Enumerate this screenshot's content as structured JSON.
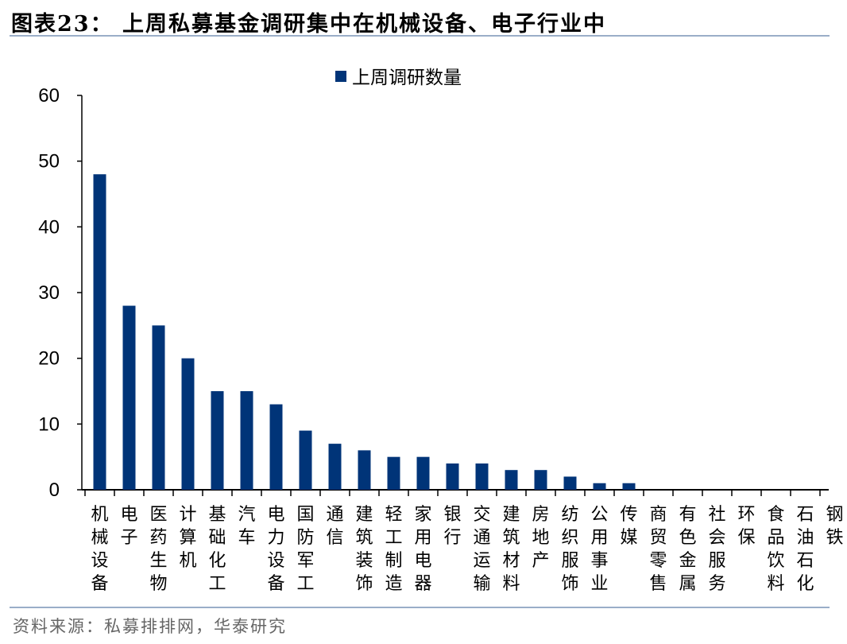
{
  "title": "图表23：  上周私募基金调研集中在机械设备、电子行业中",
  "source": "资料来源：私募排排网，华泰研究",
  "chart_data": {
    "type": "bar",
    "title": "",
    "xlabel": "",
    "ylabel": "",
    "ylim": [
      0,
      60
    ],
    "yticks": [
      0,
      10,
      20,
      30,
      40,
      50,
      60
    ],
    "grid": false,
    "legend_position": "top",
    "bar_color": "#003478",
    "categories": [
      "机械设备",
      "电子",
      "医药生物",
      "计算机",
      "基础化工",
      "汽车",
      "电力设备",
      "国防军工",
      "通信",
      "建筑装饰",
      "轻工制造",
      "家用电器",
      "银行",
      "交通运输",
      "建筑材料",
      "房地产",
      "纺织服饰",
      "公用事业",
      "传媒",
      "商贸零售",
      "有色金属",
      "社会服务",
      "环保",
      "食品饮料",
      "石油石化",
      "钢铁"
    ],
    "series": [
      {
        "name": "上周调研数量",
        "values": [
          48,
          28,
          25,
          20,
          15,
          15,
          13,
          9,
          7,
          6,
          5,
          5,
          4,
          4,
          3,
          3,
          2,
          1,
          1,
          0,
          0,
          0,
          0,
          0,
          0,
          0
        ]
      }
    ]
  }
}
